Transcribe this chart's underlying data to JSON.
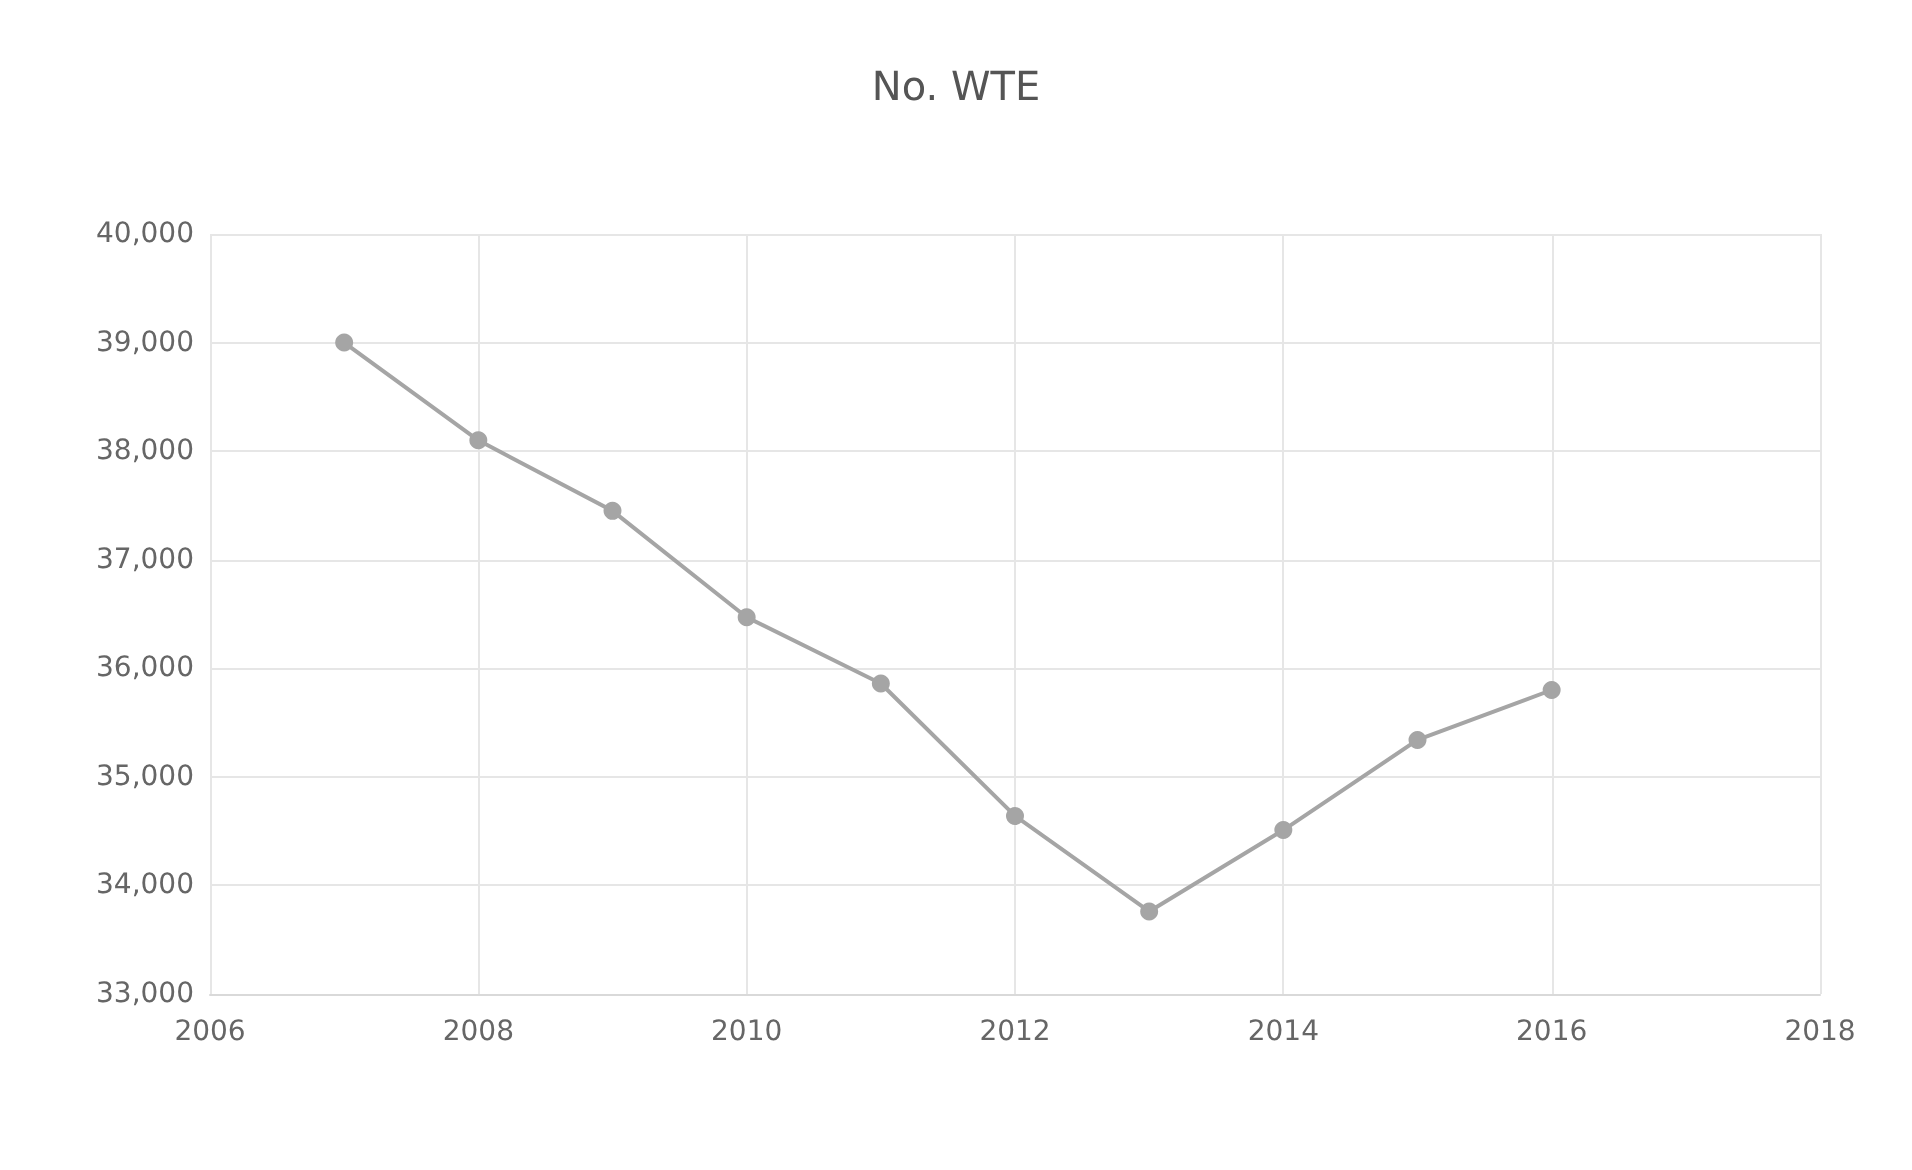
{
  "chart_data": {
    "type": "line",
    "title": "No. WTE",
    "x": [
      2007,
      2008,
      2009,
      2010,
      2011,
      2012,
      2013,
      2014,
      2015,
      2016
    ],
    "series": [
      {
        "color": "#a5a5a5",
        "values": [
          39000,
          38100,
          37450,
          36470,
          35860,
          34640,
          33760,
          34510,
          35340,
          35800
        ]
      }
    ],
    "xlim": [
      2006,
      2018
    ],
    "xticks": [
      2006,
      2008,
      2010,
      2012,
      2014,
      2016,
      2018
    ],
    "ylim": [
      33000,
      40000
    ],
    "yticks": [
      {
        "value": 33000,
        "label": "33,000"
      },
      {
        "value": 34000,
        "label": "34,000"
      },
      {
        "value": 35000,
        "label": "35,000"
      },
      {
        "value": 36000,
        "label": "36,000"
      },
      {
        "value": 37000,
        "label": "37,000"
      },
      {
        "value": 38000,
        "label": "38,000"
      },
      {
        "value": 39000,
        "label": "39,000"
      },
      {
        "value": 40000,
        "label": "40,000"
      }
    ],
    "grid": true,
    "marker": "circle",
    "line_style": "solid"
  }
}
